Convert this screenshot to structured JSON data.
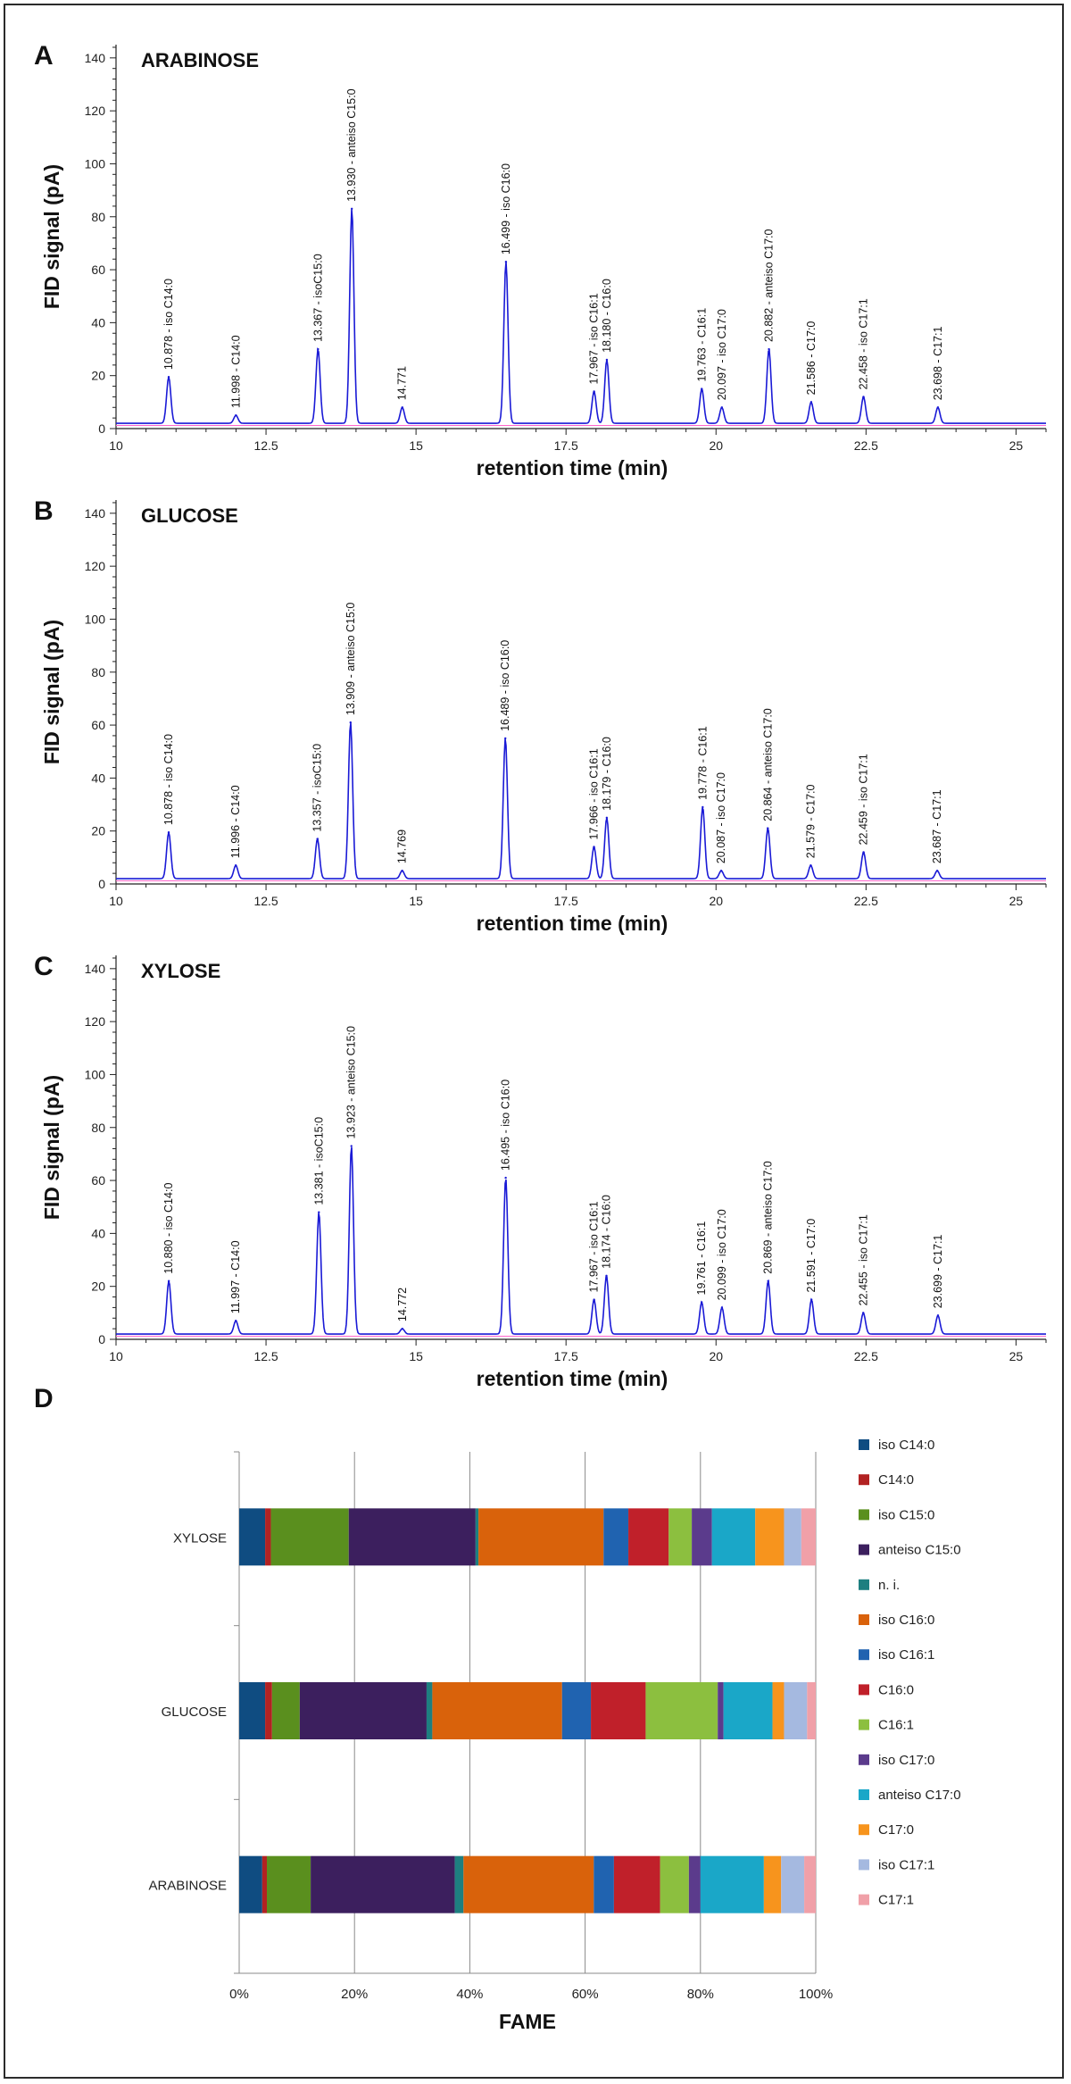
{
  "panels": [
    {
      "letter": "A",
      "title": "ARABINOSE",
      "xlabel": "retention time (min)",
      "ylabel": "FID signal (pA)",
      "xlim": [
        10,
        25.5
      ],
      "ylim": [
        0,
        145
      ],
      "xticks": [
        "10",
        "12.5",
        "15",
        "17.5",
        "20",
        "22.5",
        "25"
      ],
      "yticks": [
        "0",
        "20",
        "40",
        "60",
        "80",
        "100",
        "120",
        "140"
      ],
      "peaks": [
        {
          "rt": 10.878,
          "h": 17.5,
          "label": "10.878 - iso C14:0"
        },
        {
          "rt": 11.998,
          "h": 3,
          "label": "11.998 - C14:0"
        },
        {
          "rt": 13.367,
          "h": 28,
          "label": "13.367 - isoC15:0"
        },
        {
          "rt": 13.93,
          "h": 81,
          "label": "13.930 - anteiso C15:0"
        },
        {
          "rt": 14.771,
          "h": 6,
          "label": "14.771"
        },
        {
          "rt": 16.499,
          "h": 61,
          "label": "16.499 - iso C16:0"
        },
        {
          "rt": 17.967,
          "h": 12,
          "label": "17.967 - iso C16:1"
        },
        {
          "rt": 18.18,
          "h": 24,
          "label": "18.180 - C16:0"
        },
        {
          "rt": 19.763,
          "h": 13,
          "label": "19.763 - C16:1"
        },
        {
          "rt": 20.097,
          "h": 6,
          "label": "20.097 - iso C17:0"
        },
        {
          "rt": 20.882,
          "h": 28,
          "label": "20.882 - anteiso C17:0"
        },
        {
          "rt": 21.586,
          "h": 8,
          "label": "21.586 - C17:0"
        },
        {
          "rt": 22.458,
          "h": 10,
          "label": "22.458 - iso C17:1"
        },
        {
          "rt": 23.698,
          "h": 6,
          "label": "23.698 - C17:1"
        }
      ]
    },
    {
      "letter": "B",
      "title": "GLUCOSE",
      "xlabel": "retention time (min)",
      "ylabel": "FID signal (pA)",
      "xlim": [
        10,
        25.5
      ],
      "ylim": [
        0,
        145
      ],
      "xticks": [
        "10",
        "12.5",
        "15",
        "17.5",
        "20",
        "22.5",
        "25"
      ],
      "yticks": [
        "0",
        "20",
        "40",
        "60",
        "80",
        "100",
        "120",
        "140"
      ],
      "peaks": [
        {
          "rt": 10.878,
          "h": 17.5,
          "label": "10.878 - iso C14:0"
        },
        {
          "rt": 11.996,
          "h": 5,
          "label": "11.996 - C14:0"
        },
        {
          "rt": 13.357,
          "h": 15,
          "label": "13.357 - isoC15:0"
        },
        {
          "rt": 13.909,
          "h": 59,
          "label": "13.909 - anteiso C15:0"
        },
        {
          "rt": 14.769,
          "h": 3,
          "label": "14.769"
        },
        {
          "rt": 16.489,
          "h": 53,
          "label": "16.489 - iso C16:0"
        },
        {
          "rt": 17.966,
          "h": 12,
          "label": "17.966 - iso C16:1"
        },
        {
          "rt": 18.179,
          "h": 23,
          "label": "18.179 - C16:0"
        },
        {
          "rt": 19.778,
          "h": 27,
          "label": "19.778 - C16:1"
        },
        {
          "rt": 20.087,
          "h": 3,
          "label": "20.087 - iso C17:0"
        },
        {
          "rt": 20.864,
          "h": 19,
          "label": "20.864 - anteiso C17:0"
        },
        {
          "rt": 21.579,
          "h": 5,
          "label": "21.579 - C17:0"
        },
        {
          "rt": 22.459,
          "h": 10,
          "label": "22.459 - iso C17:1"
        },
        {
          "rt": 23.687,
          "h": 3,
          "label": "23.687 - C17:1"
        }
      ]
    },
    {
      "letter": "C",
      "title": "XYLOSE",
      "xlabel": "retention time (min)",
      "ylabel": "FID signal (pA)",
      "xlim": [
        10,
        25.5
      ],
      "ylim": [
        0,
        145
      ],
      "xticks": [
        "10",
        "12.5",
        "15",
        "17.5",
        "20",
        "22.5",
        "25"
      ],
      "yticks": [
        "0",
        "20",
        "40",
        "60",
        "80",
        "100",
        "120",
        "140"
      ],
      "peaks": [
        {
          "rt": 10.88,
          "h": 20,
          "label": "10.880 - iso C14:0"
        },
        {
          "rt": 11.997,
          "h": 5,
          "label": "11.997 - C14:0"
        },
        {
          "rt": 13.381,
          "h": 46,
          "label": "13.381 - isoC15:0"
        },
        {
          "rt": 13.923,
          "h": 71,
          "label": "13.923 - anteiso C15:0"
        },
        {
          "rt": 14.772,
          "h": 2,
          "label": "14.772"
        },
        {
          "rt": 16.495,
          "h": 59,
          "label": "16.495 - iso C16:0"
        },
        {
          "rt": 17.967,
          "h": 13,
          "label": "17.967 - iso C16:1"
        },
        {
          "rt": 18.174,
          "h": 22,
          "label": "18.174 - C16:0"
        },
        {
          "rt": 19.761,
          "h": 12,
          "label": "19.761 - C16:1"
        },
        {
          "rt": 20.099,
          "h": 10,
          "label": "20.099 - iso C17:0"
        },
        {
          "rt": 20.869,
          "h": 20,
          "label": "20.869 - anteiso C17:0"
        },
        {
          "rt": 21.591,
          "h": 13,
          "label": "21.591 - C17:0"
        },
        {
          "rt": 22.455,
          "h": 8,
          "label": "22.455 - iso C17:1"
        },
        {
          "rt": 23.699,
          "h": 7,
          "label": "23.699 - C17:1"
        }
      ]
    }
  ],
  "bar_panel": {
    "letter": "D",
    "xlabel": "FAME",
    "xticks": [
      "0%",
      "20%",
      "40%",
      "60%",
      "80%",
      "100%"
    ],
    "categories": [
      "XYLOSE",
      "GLUCOSE",
      "ARABINOSE"
    ],
    "series": [
      {
        "name": "iso C14:0",
        "color": "#0f4c81",
        "values": [
          4.5,
          4.5,
          4.0
        ]
      },
      {
        "name": "C14:0",
        "color": "#b22222",
        "values": [
          1.0,
          1.2,
          0.8
        ]
      },
      {
        "name": "iso C15:0",
        "color": "#5a8f1e",
        "values": [
          13.5,
          4.8,
          7.6
        ]
      },
      {
        "name": "anteiso C15:0",
        "color": "#3c1f5e",
        "values": [
          22.0,
          22.0,
          25.0
        ]
      },
      {
        "name": "n. i.",
        "color": "#1e7f80",
        "values": [
          0.5,
          1.0,
          1.5
        ]
      },
      {
        "name": "iso C16:0",
        "color": "#d9620b",
        "values": [
          21.7,
          22.5,
          22.6
        ]
      },
      {
        "name": "iso C16:1",
        "color": "#2063b0",
        "values": [
          4.3,
          5.0,
          3.5
        ]
      },
      {
        "name": "C16:0",
        "color": "#c0202a",
        "values": [
          7.0,
          9.5,
          8.0
        ]
      },
      {
        "name": "C16:1",
        "color": "#8cbf3f",
        "values": [
          4.0,
          12.5,
          5.0
        ]
      },
      {
        "name": "iso C17:0",
        "color": "#5b3b8c",
        "values": [
          3.5,
          1.0,
          2.0
        ]
      },
      {
        "name": "anteiso C17:0",
        "color": "#1aa7c8",
        "values": [
          7.5,
          8.5,
          11.0
        ]
      },
      {
        "name": "C17:0",
        "color": "#f7941d",
        "values": [
          5.0,
          2.0,
          3.0
        ]
      },
      {
        "name": "iso C17:1",
        "color": "#a5b9e0",
        "values": [
          3.0,
          4.0,
          4.0
        ]
      },
      {
        "name": "C17:1",
        "color": "#f0a0a8",
        "values": [
          2.5,
          1.5,
          2.0
        ]
      }
    ]
  }
}
